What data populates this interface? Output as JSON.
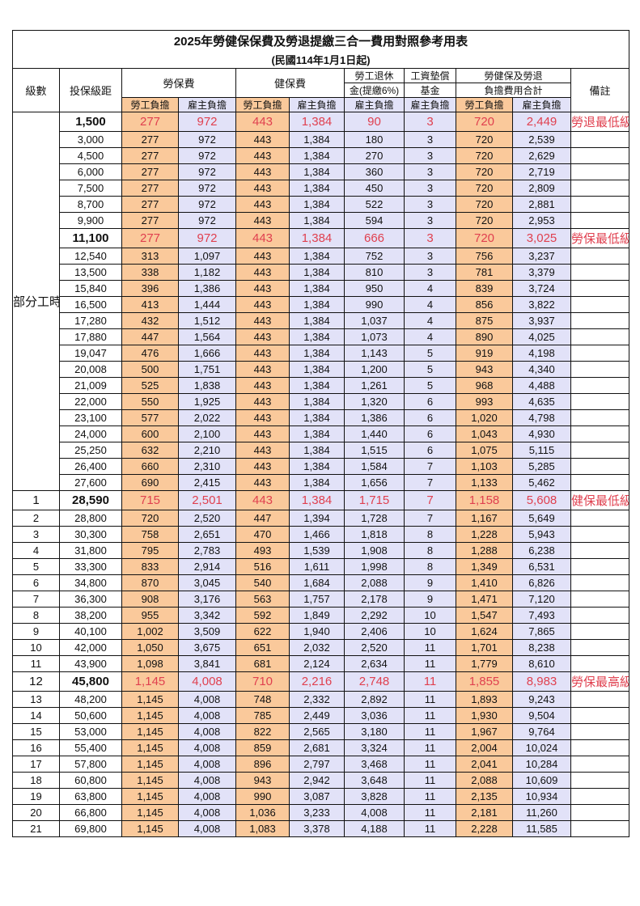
{
  "title": "2025年勞健保保費及勞退提繳三合一費用對照參考用表",
  "subtitle": "(民國114年1月1日起)",
  "headers": {
    "grade": "級數",
    "bracket": "投保級距",
    "labor": "勞保費",
    "health": "健保費",
    "pension1": "勞工退休",
    "pension2": "金(提繳6%)",
    "wage1": "工資墊償",
    "wage2": "基金",
    "total1": "勞健保及勞退",
    "total2": "負擔費用合計",
    "note": "備註",
    "worker": "勞工負擔",
    "employer": "雇主負擔"
  },
  "part_time_label": "部分工時",
  "colors": {
    "worker": "#fac99b",
    "employer": "#e2e2f8",
    "highlight": "#e0404f"
  },
  "rows": [
    [
      "",
      "1,500",
      "277",
      "972",
      "443",
      "1,384",
      "90",
      "3",
      "720",
      "2,449",
      "勞退最低級距"
    ],
    [
      "",
      "3,000",
      "277",
      "972",
      "443",
      "1,384",
      "180",
      "3",
      "720",
      "2,539",
      ""
    ],
    [
      "",
      "4,500",
      "277",
      "972",
      "443",
      "1,384",
      "270",
      "3",
      "720",
      "2,629",
      ""
    ],
    [
      "",
      "6,000",
      "277",
      "972",
      "443",
      "1,384",
      "360",
      "3",
      "720",
      "2,719",
      ""
    ],
    [
      "",
      "7,500",
      "277",
      "972",
      "443",
      "1,384",
      "450",
      "3",
      "720",
      "2,809",
      ""
    ],
    [
      "",
      "8,700",
      "277",
      "972",
      "443",
      "1,384",
      "522",
      "3",
      "720",
      "2,881",
      ""
    ],
    [
      "",
      "9,900",
      "277",
      "972",
      "443",
      "1,384",
      "594",
      "3",
      "720",
      "2,953",
      ""
    ],
    [
      "",
      "11,100",
      "277",
      "972",
      "443",
      "1,384",
      "666",
      "3",
      "720",
      "3,025",
      "勞保最低級距"
    ],
    [
      "",
      "12,540",
      "313",
      "1,097",
      "443",
      "1,384",
      "752",
      "3",
      "756",
      "3,237",
      ""
    ],
    [
      "",
      "13,500",
      "338",
      "1,182",
      "443",
      "1,384",
      "810",
      "3",
      "781",
      "3,379",
      ""
    ],
    [
      "",
      "15,840",
      "396",
      "1,386",
      "443",
      "1,384",
      "950",
      "4",
      "839",
      "3,724",
      ""
    ],
    [
      "",
      "16,500",
      "413",
      "1,444",
      "443",
      "1,384",
      "990",
      "4",
      "856",
      "3,822",
      ""
    ],
    [
      "",
      "17,280",
      "432",
      "1,512",
      "443",
      "1,384",
      "1,037",
      "4",
      "875",
      "3,937",
      ""
    ],
    [
      "",
      "17,880",
      "447",
      "1,564",
      "443",
      "1,384",
      "1,073",
      "4",
      "890",
      "4,025",
      ""
    ],
    [
      "",
      "19,047",
      "476",
      "1,666",
      "443",
      "1,384",
      "1,143",
      "5",
      "919",
      "4,198",
      ""
    ],
    [
      "",
      "20,008",
      "500",
      "1,751",
      "443",
      "1,384",
      "1,200",
      "5",
      "943",
      "4,340",
      ""
    ],
    [
      "",
      "21,009",
      "525",
      "1,838",
      "443",
      "1,384",
      "1,261",
      "5",
      "968",
      "4,488",
      ""
    ],
    [
      "",
      "22,000",
      "550",
      "1,925",
      "443",
      "1,384",
      "1,320",
      "6",
      "993",
      "4,635",
      ""
    ],
    [
      "",
      "23,100",
      "577",
      "2,022",
      "443",
      "1,384",
      "1,386",
      "6",
      "1,020",
      "4,798",
      ""
    ],
    [
      "",
      "24,000",
      "600",
      "2,100",
      "443",
      "1,384",
      "1,440",
      "6",
      "1,043",
      "4,930",
      ""
    ],
    [
      "",
      "25,250",
      "632",
      "2,210",
      "443",
      "1,384",
      "1,515",
      "6",
      "1,075",
      "5,115",
      ""
    ],
    [
      "",
      "26,400",
      "660",
      "2,310",
      "443",
      "1,384",
      "1,584",
      "7",
      "1,103",
      "5,285",
      ""
    ],
    [
      "",
      "27,600",
      "690",
      "2,415",
      "443",
      "1,384",
      "1,656",
      "7",
      "1,133",
      "5,462",
      ""
    ],
    [
      "1",
      "28,590",
      "715",
      "2,501",
      "443",
      "1,384",
      "1,715",
      "7",
      "1,158",
      "5,608",
      "健保最低級距"
    ],
    [
      "2",
      "28,800",
      "720",
      "2,520",
      "447",
      "1,394",
      "1,728",
      "7",
      "1,167",
      "5,649",
      ""
    ],
    [
      "3",
      "30,300",
      "758",
      "2,651",
      "470",
      "1,466",
      "1,818",
      "8",
      "1,228",
      "5,943",
      ""
    ],
    [
      "4",
      "31,800",
      "795",
      "2,783",
      "493",
      "1,539",
      "1,908",
      "8",
      "1,288",
      "6,238",
      ""
    ],
    [
      "5",
      "33,300",
      "833",
      "2,914",
      "516",
      "1,611",
      "1,998",
      "8",
      "1,349",
      "6,531",
      ""
    ],
    [
      "6",
      "34,800",
      "870",
      "3,045",
      "540",
      "1,684",
      "2,088",
      "9",
      "1,410",
      "6,826",
      ""
    ],
    [
      "7",
      "36,300",
      "908",
      "3,176",
      "563",
      "1,757",
      "2,178",
      "9",
      "1,471",
      "7,120",
      ""
    ],
    [
      "8",
      "38,200",
      "955",
      "3,342",
      "592",
      "1,849",
      "2,292",
      "10",
      "1,547",
      "7,493",
      ""
    ],
    [
      "9",
      "40,100",
      "1,002",
      "3,509",
      "622",
      "1,940",
      "2,406",
      "10",
      "1,624",
      "7,865",
      ""
    ],
    [
      "10",
      "42,000",
      "1,050",
      "3,675",
      "651",
      "2,032",
      "2,520",
      "11",
      "1,701",
      "8,238",
      ""
    ],
    [
      "11",
      "43,900",
      "1,098",
      "3,841",
      "681",
      "2,124",
      "2,634",
      "11",
      "1,779",
      "8,610",
      ""
    ],
    [
      "12",
      "45,800",
      "1,145",
      "4,008",
      "710",
      "2,216",
      "2,748",
      "11",
      "1,855",
      "8,983",
      "勞保最高級距"
    ],
    [
      "13",
      "48,200",
      "1,145",
      "4,008",
      "748",
      "2,332",
      "2,892",
      "11",
      "1,893",
      "9,243",
      ""
    ],
    [
      "14",
      "50,600",
      "1,145",
      "4,008",
      "785",
      "2,449",
      "3,036",
      "11",
      "1,930",
      "9,504",
      ""
    ],
    [
      "15",
      "53,000",
      "1,145",
      "4,008",
      "822",
      "2,565",
      "3,180",
      "11",
      "1,967",
      "9,764",
      ""
    ],
    [
      "16",
      "55,400",
      "1,145",
      "4,008",
      "859",
      "2,681",
      "3,324",
      "11",
      "2,004",
      "10,024",
      ""
    ],
    [
      "17",
      "57,800",
      "1,145",
      "4,008",
      "896",
      "2,797",
      "3,468",
      "11",
      "2,041",
      "10,284",
      ""
    ],
    [
      "18",
      "60,800",
      "1,145",
      "4,008",
      "943",
      "2,942",
      "3,648",
      "11",
      "2,088",
      "10,609",
      ""
    ],
    [
      "19",
      "63,800",
      "1,145",
      "4,008",
      "990",
      "3,087",
      "3,828",
      "11",
      "2,135",
      "10,934",
      ""
    ],
    [
      "20",
      "66,800",
      "1,145",
      "4,008",
      "1,036",
      "3,233",
      "4,008",
      "11",
      "2,181",
      "11,260",
      ""
    ],
    [
      "21",
      "69,800",
      "1,145",
      "4,008",
      "1,083",
      "3,378",
      "4,188",
      "11",
      "2,228",
      "11,585",
      ""
    ]
  ]
}
